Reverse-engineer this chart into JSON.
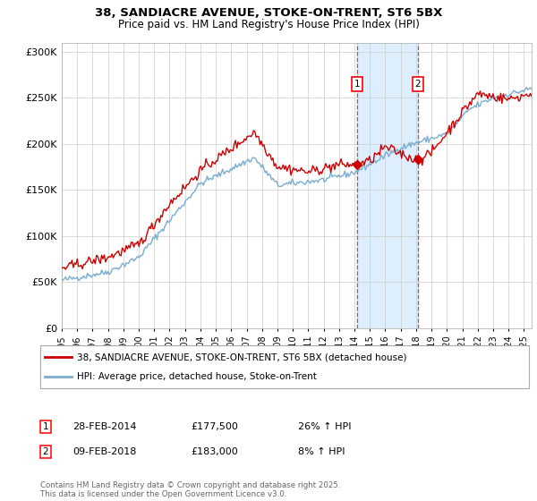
{
  "title": "38, SANDIACRE AVENUE, STOKE-ON-TRENT, ST6 5BX",
  "subtitle": "Price paid vs. HM Land Registry's House Price Index (HPI)",
  "ylim": [
    0,
    310000
  ],
  "yticks": [
    0,
    50000,
    100000,
    150000,
    200000,
    250000,
    300000
  ],
  "ytick_labels": [
    "£0",
    "£50K",
    "£100K",
    "£150K",
    "£200K",
    "£250K",
    "£300K"
  ],
  "sale1_date": 2014.16,
  "sale1_price": 177500,
  "sale2_date": 2018.11,
  "sale2_price": 183000,
  "red_color": "#cc0000",
  "blue_color": "#7aadcf",
  "shaded_color": "#ddeeff",
  "grid_color": "#cccccc",
  "bg_color": "#ffffff",
  "legend_label_red": "38, SANDIACRE AVENUE, STOKE-ON-TRENT, ST6 5BX (detached house)",
  "legend_label_blue": "HPI: Average price, detached house, Stoke-on-Trent",
  "sale1_text": "28-FEB-2014",
  "sale1_price_text": "£177,500",
  "sale1_hpi_text": "26% ↑ HPI",
  "sale2_text": "09-FEB-2018",
  "sale2_price_text": "£183,000",
  "sale2_hpi_text": "8% ↑ HPI",
  "footnote": "Contains HM Land Registry data © Crown copyright and database right 2025.\nThis data is licensed under the Open Government Licence v3.0."
}
